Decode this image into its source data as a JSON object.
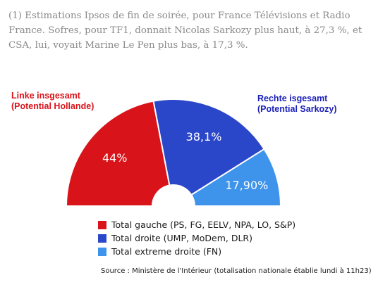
{
  "note": "(1) Estimations Ipsos de fin de soirée, pour France Télévisions et Radio France. Sofres, pour TF1, donnait Nicolas Sarkozy plus haut, à 27,3 %, et CSA, lui, voyait Marine Le Pen plus bas, à 17,3 %.",
  "left_label": {
    "line1": "Linke insgesamt",
    "line2": "(Potential Hollande)",
    "color": "#d9141b"
  },
  "right_label": {
    "line1": "Rechte isgesamt",
    "line2": "(Potential Sarkozy)",
    "color": "#1a1fb8"
  },
  "chart_data": {
    "type": "pie",
    "subtype": "half-donut",
    "categories": [
      "Total gauche (PS, FG, EELV, NPA, LO, S&P)",
      "Total droite (UMP, MoDem, DLR)",
      "Total extreme droite (FN)"
    ],
    "values": [
      44,
      38.1,
      17.9
    ],
    "data_labels": [
      "44%",
      "38,1%",
      "17,90%"
    ],
    "colors": [
      "#d8141a",
      "#2b47c9",
      "#3e93ea"
    ],
    "legend": "bottom"
  },
  "source": "Source : Ministère de l'Intérieur (totalisation nationale établie lundi à 11h23)"
}
